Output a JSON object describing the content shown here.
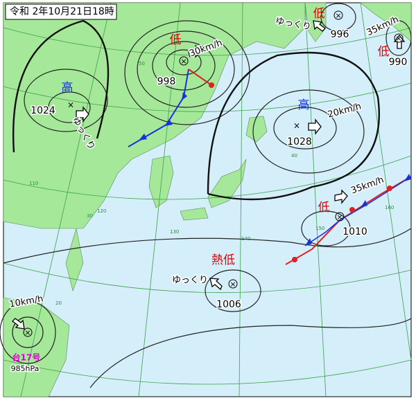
{
  "header": {
    "title": "令和 2年10月21日18時"
  },
  "systems": [
    {
      "kind": "低",
      "pressure": "998",
      "motion": "30km/h"
    },
    {
      "kind": "高",
      "pressure": "1024",
      "motion": "ゆっくり"
    },
    {
      "kind": "高",
      "pressure": "1028",
      "motion": "20km/h"
    },
    {
      "kind": "低",
      "pressure": "1010",
      "motion": "35km/h"
    },
    {
      "kind": "熱低",
      "pressure": "1006",
      "motion": "ゆっくり"
    },
    {
      "kind": "低",
      "pressure": "996",
      "motion": "ゆっくり"
    },
    {
      "kind": "低",
      "pressure": "990",
      "motion": "35km/h"
    },
    {
      "kind": "台17号",
      "pressure": "985hPa",
      "motion": "10km/h"
    }
  ],
  "grid_labels": [
    "50",
    "40",
    "30",
    "20",
    "110",
    "120",
    "130",
    "140",
    "150",
    "160"
  ]
}
